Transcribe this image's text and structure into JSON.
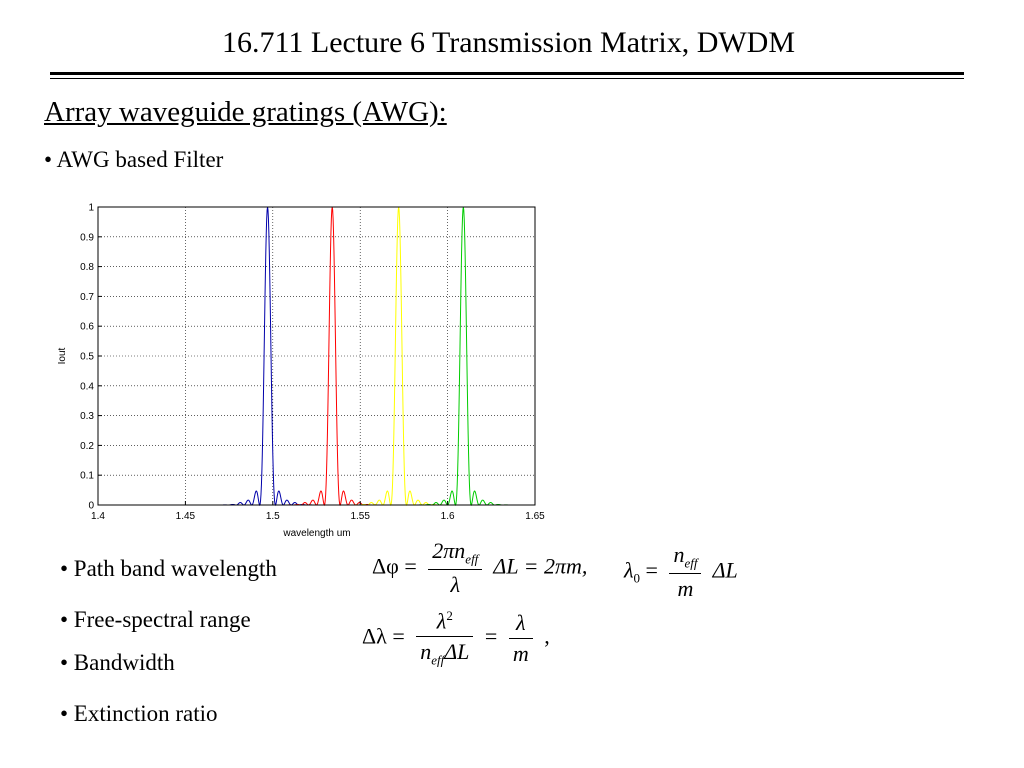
{
  "header": {
    "title": "16.711 Lecture 6 Transmission Matrix, DWDM"
  },
  "section": {
    "heading": "Array waveguide gratings (AWG):"
  },
  "bullets": {
    "awg_filter": "• AWG based Filter",
    "path_band": "• Path band wavelength",
    "fsr": "• Free-spectral range",
    "bandwidth": "• Bandwidth",
    "extinction": "• Extinction ratio"
  },
  "equations": {
    "phase": {
      "lhs": "Δφ =",
      "num": "2πn",
      "num_sub": "eff",
      "den": "λ",
      "rhs": "ΔL = 2πm,"
    },
    "center": {
      "lhs_sym": "λ",
      "lhs_sub": "0",
      "eq": "=",
      "num": "n",
      "num_sub": "eff",
      "den": "m",
      "rhs": "ΔL"
    },
    "fsr": {
      "lhs": "Δλ =",
      "num": "λ",
      "num_sup": "2",
      "den": "n",
      "den_sub": "eff",
      "den_tail": "ΔL",
      "eq2": "=",
      "num2": "λ",
      "den2": "m",
      "tail": ","
    }
  },
  "chart_data": {
    "type": "line",
    "xlabel": "wavelength um",
    "ylabel": "Iout",
    "xlim": [
      1.4,
      1.65
    ],
    "ylim": [
      0,
      1
    ],
    "xticks": [
      1.4,
      1.45,
      1.5,
      1.55,
      1.6,
      1.65
    ],
    "xtick_labels": [
      "1.4",
      "1.45",
      "1.5",
      "1.55",
      "1.6",
      "1.65"
    ],
    "yticks": [
      0,
      0.1,
      0.2,
      0.3,
      0.4,
      0.5,
      0.6,
      0.7,
      0.8,
      0.9,
      1
    ],
    "ytick_labels": [
      "0",
      "0.1",
      "0.2",
      "0.3",
      "0.4",
      "0.5",
      "0.6",
      "0.7",
      "0.8",
      "0.9",
      "1"
    ],
    "grid": true,
    "data_start_x": 1.45,
    "series": [
      {
        "color": "#0000aa",
        "peak_x": 1.497,
        "peak_y": 1.0
      },
      {
        "color": "#ff0000",
        "peak_x": 1.534,
        "peak_y": 1.0
      },
      {
        "color": "#ffff00",
        "peak_x": 1.572,
        "peak_y": 1.0
      },
      {
        "color": "#00cc00",
        "peak_x": 1.609,
        "peak_y": 1.0
      }
    ]
  }
}
